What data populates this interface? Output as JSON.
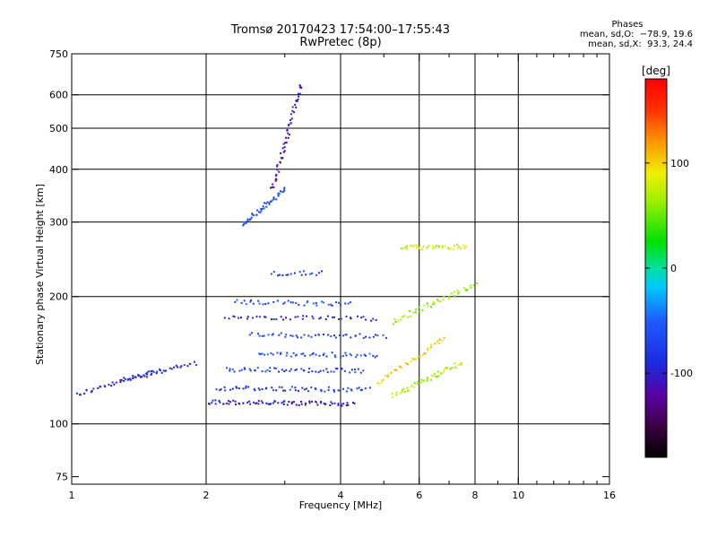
{
  "header": {
    "title_line1": "Tromsø 20170423 17:54:00–17:55:43",
    "title_line2": "RwPretec (8p)",
    "phases_title": "Phases",
    "phases_o": "mean, sd,O:  −78.9, 19.6",
    "phases_x": "mean, sd,X:  93.3, 24.4"
  },
  "chart_data": {
    "type": "scatter",
    "title": "Tromsø 20170423 17:54:00–17:55:43",
    "subtitle": "RwPretec (8p)",
    "xlabel": "Frequency [MHz]",
    "ylabel": "Stationary phase Virtual Height [km]",
    "xscale": "log",
    "yscale": "log",
    "xlim": [
      1,
      16
    ],
    "ylim": [
      72,
      750
    ],
    "xticks": [
      1,
      2,
      4,
      6,
      8,
      10,
      16
    ],
    "xtick_labels": [
      "1",
      "2",
      "4",
      "6",
      "8",
      "10",
      "16"
    ],
    "xminor_ticks": [
      3,
      5,
      7,
      9,
      11,
      12,
      13,
      14,
      15
    ],
    "yticks": [
      75,
      100,
      200,
      300,
      400,
      500,
      600,
      750
    ],
    "ytick_labels": [
      "75",
      "100",
      "200",
      "300",
      "400",
      "500",
      "600",
      "750"
    ],
    "grid_x": [
      2,
      4,
      6,
      8,
      10
    ],
    "grid_y": [
      100,
      200,
      300,
      400,
      500,
      600
    ],
    "colorbar": {
      "label": "[deg]",
      "range": [
        -180,
        180
      ],
      "ticks": [
        100,
        0,
        -100
      ],
      "tick_labels": [
        "100",
        "0",
        "-100"
      ]
    },
    "colors": {
      "axis": "#000000",
      "grid": "#000000",
      "o_mode": "#1f5bd6",
      "x_mode": "#e8c820"
    },
    "series": [
      {
        "traces": [
          {
            "x0": 1.02,
            "x1": 1.6,
            "y0": 118,
            "y1": 135,
            "n": 40,
            "phase": -100
          },
          {
            "x0": 1.3,
            "x1": 1.9,
            "y0": 128,
            "y1": 140,
            "n": 35,
            "phase": -95
          },
          {
            "x0": 2.0,
            "x1": 4.3,
            "y0": 113,
            "y1": 112,
            "n": 80,
            "phase": -105
          },
          {
            "x0": 2.1,
            "x1": 4.6,
            "y0": 122,
            "y1": 121,
            "n": 60,
            "phase": -85
          },
          {
            "x0": 2.2,
            "x1": 4.5,
            "y0": 135,
            "y1": 134,
            "n": 55,
            "phase": -75
          },
          {
            "x0": 2.6,
            "x1": 4.8,
            "y0": 147,
            "y1": 146,
            "n": 45,
            "phase": -70
          },
          {
            "x0": 2.5,
            "x1": 5.0,
            "y0": 163,
            "y1": 162,
            "n": 45,
            "phase": -75
          },
          {
            "x0": 2.2,
            "x1": 4.8,
            "y0": 180,
            "y1": 178,
            "n": 45,
            "phase": -100
          },
          {
            "x0": 2.3,
            "x1": 4.2,
            "y0": 195,
            "y1": 193,
            "n": 40,
            "phase": -70
          },
          {
            "x0": 2.8,
            "x1": 3.6,
            "y0": 228,
            "y1": 228,
            "n": 18,
            "phase": -80
          },
          {
            "x0": 2.4,
            "x1": 3.0,
            "y0": 298,
            "y1": 360,
            "n": 50,
            "phase": -70
          },
          {
            "x0": 2.8,
            "x1": 3.25,
            "y0": 360,
            "y1": 640,
            "n": 55,
            "phase": -110
          },
          {
            "x0": 5.4,
            "x1": 7.6,
            "y0": 262,
            "y1": 264,
            "n": 40,
            "phase": 80
          },
          {
            "x0": 5.2,
            "x1": 7.4,
            "y0": 117,
            "y1": 140,
            "n": 50,
            "phase": 70
          },
          {
            "x0": 4.8,
            "x1": 6.8,
            "y0": 125,
            "y1": 160,
            "n": 40,
            "phase": 100
          },
          {
            "x0": 5.2,
            "x1": 8.0,
            "y0": 175,
            "y1": 215,
            "n": 45,
            "phase": 60
          }
        ]
      }
    ]
  }
}
